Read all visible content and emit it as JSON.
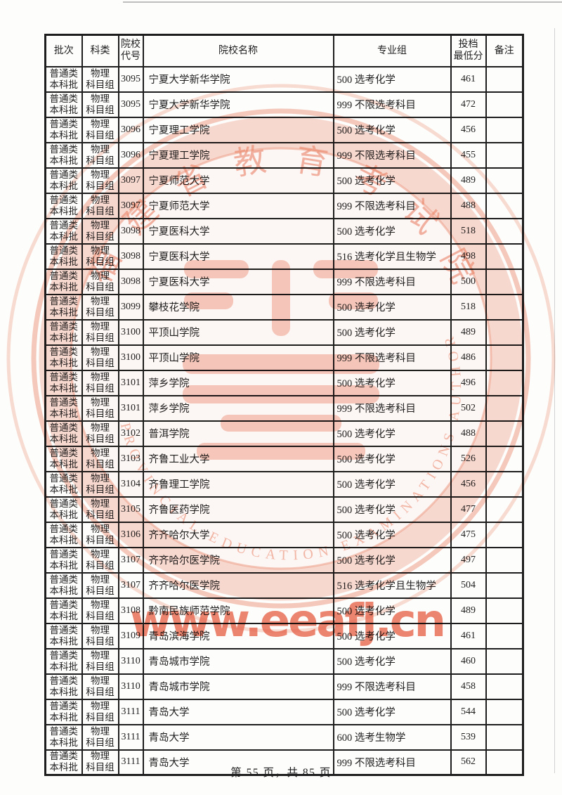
{
  "table": {
    "headers": {
      "batch": "批次",
      "category": "科类",
      "code_l1": "院校",
      "code_l2": "代号",
      "name": "院校名称",
      "group": "专业组",
      "score_l1": "投档",
      "score_l2": "最低分",
      "remark": "备注"
    },
    "row_common": {
      "batch_l1": "普通类",
      "batch_l2": "本科批",
      "category_l1": "物理",
      "category_l2": "科目组"
    },
    "rows": [
      {
        "code": "3095",
        "name": "宁夏大学新华学院",
        "group": "500 选考化学",
        "score": "461",
        "remark": ""
      },
      {
        "code": "3095",
        "name": "宁夏大学新华学院",
        "group": "999 不限选考科目",
        "score": "472",
        "remark": ""
      },
      {
        "code": "3096",
        "name": "宁夏理工学院",
        "group": "500 选考化学",
        "score": "456",
        "remark": ""
      },
      {
        "code": "3096",
        "name": "宁夏理工学院",
        "group": "999 不限选考科目",
        "score": "455",
        "remark": ""
      },
      {
        "code": "3097",
        "name": "宁夏师范大学",
        "group": "500 选考化学",
        "score": "489",
        "remark": ""
      },
      {
        "code": "3097",
        "name": "宁夏师范大学",
        "group": "999 不限选考科目",
        "score": "488",
        "remark": ""
      },
      {
        "code": "3098",
        "name": "宁夏医科大学",
        "group": "500 选考化学",
        "score": "518",
        "remark": ""
      },
      {
        "code": "3098",
        "name": "宁夏医科大学",
        "group": "516 选考化学且生物学",
        "score": "498",
        "remark": ""
      },
      {
        "code": "3098",
        "name": "宁夏医科大学",
        "group": "999 不限选考科目",
        "score": "500",
        "remark": ""
      },
      {
        "code": "3099",
        "name": "攀枝花学院",
        "group": "500 选考化学",
        "score": "518",
        "remark": ""
      },
      {
        "code": "3100",
        "name": "平顶山学院",
        "group": "500 选考化学",
        "score": "489",
        "remark": ""
      },
      {
        "code": "3100",
        "name": "平顶山学院",
        "group": "999 不限选考科目",
        "score": "486",
        "remark": ""
      },
      {
        "code": "3101",
        "name": "萍乡学院",
        "group": "500 选考化学",
        "score": "496",
        "remark": ""
      },
      {
        "code": "3101",
        "name": "萍乡学院",
        "group": "999 不限选考科目",
        "score": "502",
        "remark": ""
      },
      {
        "code": "3102",
        "name": "普洱学院",
        "group": "500 选考化学",
        "score": "488",
        "remark": ""
      },
      {
        "code": "3103",
        "name": "齐鲁工业大学",
        "group": "500 选考化学",
        "score": "526",
        "remark": ""
      },
      {
        "code": "3104",
        "name": "齐鲁理工学院",
        "group": "500 选考化学",
        "score": "456",
        "remark": ""
      },
      {
        "code": "3105",
        "name": "齐鲁医药学院",
        "group": "500 选考化学",
        "score": "477",
        "remark": ""
      },
      {
        "code": "3106",
        "name": "齐齐哈尔大学",
        "group": "500 选考化学",
        "score": "475",
        "remark": ""
      },
      {
        "code": "3107",
        "name": "齐齐哈尔医学院",
        "group": "500 选考化学",
        "score": "497",
        "remark": ""
      },
      {
        "code": "3107",
        "name": "齐齐哈尔医学院",
        "group": "516 选考化学且生物学",
        "score": "504",
        "remark": ""
      },
      {
        "code": "3108",
        "name": "黔南民族师范学院",
        "group": "500 选考化学",
        "score": "489",
        "remark": ""
      },
      {
        "code": "3109",
        "name": "青岛滨海学院",
        "group": "500 选考化学",
        "score": "461",
        "remark": ""
      },
      {
        "code": "3110",
        "name": "青岛城市学院",
        "group": "500 选考化学",
        "score": "460",
        "remark": ""
      },
      {
        "code": "3110",
        "name": "青岛城市学院",
        "group": "999 不限选考科目",
        "score": "458",
        "remark": ""
      },
      {
        "code": "3111",
        "name": "青岛大学",
        "group": "500 选考化学",
        "score": "544",
        "remark": ""
      },
      {
        "code": "3111",
        "name": "青岛大学",
        "group": "600 选考生物学",
        "score": "539",
        "remark": ""
      },
      {
        "code": "3111",
        "name": "青岛大学",
        "group": "999 不限选考科目",
        "score": "562",
        "remark": ""
      }
    ]
  },
  "footer": {
    "text": "第 55 页，共 85 页"
  },
  "watermark": {
    "url": "www.eeafj.cn",
    "seal_top": "福建省教育考试院",
    "seal_bottom": "PROVINCIAL EDUCATION EXAMINATIONS AUTHORITY",
    "colors": {
      "ring": "#ec8a6d",
      "band": "#f6beae",
      "logo": "#f1a089",
      "seal_text": "#ec8467",
      "url": "#e8644a"
    }
  }
}
